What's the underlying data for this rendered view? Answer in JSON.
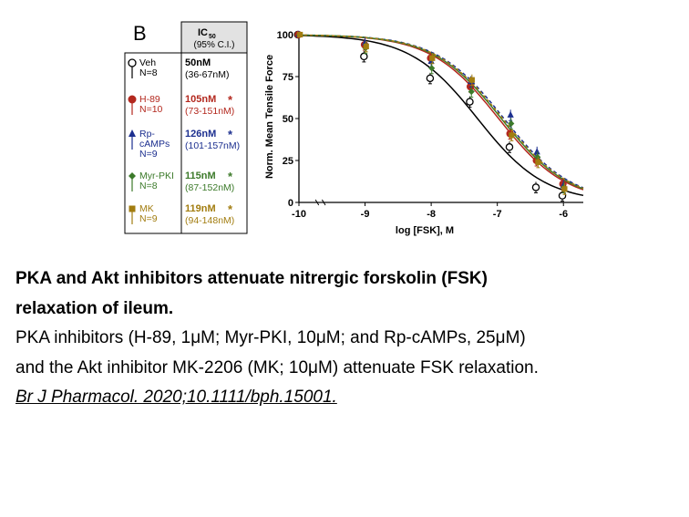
{
  "panel_letter": "B",
  "table": {
    "header_ic": "IC",
    "header_sub": "50",
    "header_ci": "(95% C.I.)",
    "rows": [
      {
        "line1": "Veh",
        "line2": "N=8",
        "ic50": "50nM",
        "ci": "(36-67nM)",
        "star": "",
        "color": "#000000"
      },
      {
        "line1": "H-89",
        "line2": "N=10",
        "ic50": "105nM",
        "ci": "(73-151nM)",
        "star": "*",
        "color": "#b3281e"
      },
      {
        "line1": "Rp-",
        "line2": "cAMPs",
        "line3": "N=9",
        "ic50": "126nM",
        "ci": "(101-157nM)",
        "star": "*",
        "color": "#1c2f8f"
      },
      {
        "line1": "Myr-PKI",
        "line2": "N=8",
        "ic50": "115nM",
        "ci": "(87-152nM)",
        "star": "*",
        "color": "#3c7a2a"
      },
      {
        "line1": "MK",
        "line2": "N=9",
        "ic50": "119nM",
        "ci": "(94-148nM)",
        "star": "*",
        "color": "#a27d10"
      }
    ]
  },
  "chart_data": {
    "type": "line",
    "xlabel": "log [FSK], M",
    "ylabel": "Norm. Mean Tensile Force",
    "xlim": [
      -10,
      -5.7
    ],
    "ylim": [
      0,
      100
    ],
    "xticks": [
      -10,
      -9,
      -8,
      -7,
      -6
    ],
    "xtick_labels": [
      "-10",
      "-9",
      "-8",
      "-7",
      "-6"
    ],
    "yticks": [
      0,
      25,
      50,
      75,
      100
    ],
    "ytick_labels": [
      "0",
      "25",
      "50",
      "75",
      "100"
    ],
    "x": [
      -10,
      -9,
      -8,
      -7.4,
      -6.8,
      -6.4,
      -6
    ],
    "series": [
      {
        "name": "Veh",
        "color": "#000000",
        "marker": "circle-open",
        "dash": "",
        "values": [
          100,
          87,
          74,
          60,
          33,
          9,
          4
        ],
        "ic50_log": -7.3
      },
      {
        "name": "H-89",
        "color": "#b3281e",
        "marker": "circle",
        "dash": "",
        "values": [
          100,
          94,
          86,
          69,
          41,
          25,
          11
        ],
        "ic50_log": -6.98
      },
      {
        "name": "Rp-cAMPs",
        "color": "#1c2f8f",
        "marker": "triangle",
        "dash": "4,3",
        "values": [
          100,
          95,
          84,
          72,
          52,
          30,
          10
        ],
        "ic50_log": -6.9
      },
      {
        "name": "Myr-PKI",
        "color": "#3c7a2a",
        "marker": "diamond",
        "dash": "",
        "values": [
          100,
          92,
          80,
          66,
          47,
          27,
          9
        ],
        "ic50_log": -6.94
      },
      {
        "name": "MK",
        "color": "#a27d10",
        "marker": "square",
        "dash": "3,3",
        "values": [
          100,
          93,
          86,
          73,
          40,
          24,
          8
        ],
        "ic50_log": -6.92
      }
    ]
  },
  "caption": {
    "title_line1": "PKA and Akt inhibitors attenuate nitrergic forskolin (FSK)",
    "title_line2": "relaxation of ileum.",
    "body_line1": "PKA inhibitors (H-89, 1μM; Myr-PKI, 10μM; and Rp-cAMPs, 25μM)",
    "body_line2": "and the Akt inhibitor MK-2206 (MK; 10μM) attenuate FSK relaxation.",
    "reference": "Br J Pharmacol. 2020;10.1111/bph.15001."
  }
}
